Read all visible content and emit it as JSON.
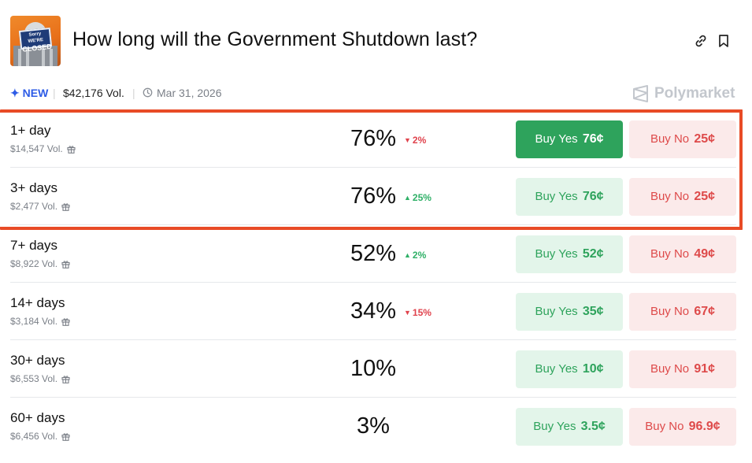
{
  "header": {
    "title": "How long will the Government Shutdown last?",
    "thumbnail": {
      "sign_top": "Sorry WE'RE",
      "sign_main": "CLOSED"
    }
  },
  "meta": {
    "new_label": "NEW",
    "volume": "$42,176 Vol.",
    "date": "Mar 31, 2026",
    "brand": "Polymarket"
  },
  "colors": {
    "yes_active": "#2ea35c",
    "yes_bg": "#e3f5ea",
    "no_bg": "#fbeaea",
    "no_text": "#de4a4a",
    "down": "#e0434d",
    "up": "#2fb067",
    "highlight": "#e84b26",
    "new": "#2e5ce6"
  },
  "outcomes": [
    {
      "label": "1+ day",
      "volume": "$14,547 Vol.",
      "percent": "76%",
      "change": "2%",
      "direction": "down",
      "yes_label": "Buy Yes",
      "yes_price": "76¢",
      "no_label": "Buy No",
      "no_price": "25¢",
      "yes_active": true
    },
    {
      "label": "3+ days",
      "volume": "$2,477 Vol.",
      "percent": "76%",
      "change": "25%",
      "direction": "up",
      "yes_label": "Buy Yes",
      "yes_price": "76¢",
      "no_label": "Buy No",
      "no_price": "25¢",
      "yes_active": false
    },
    {
      "label": "7+ days",
      "volume": "$8,922 Vol.",
      "percent": "52%",
      "change": "2%",
      "direction": "up",
      "yes_label": "Buy Yes",
      "yes_price": "52¢",
      "no_label": "Buy No",
      "no_price": "49¢",
      "yes_active": false
    },
    {
      "label": "14+ days",
      "volume": "$3,184 Vol.",
      "percent": "34%",
      "change": "15%",
      "direction": "down",
      "yes_label": "Buy Yes",
      "yes_price": "35¢",
      "no_label": "Buy No",
      "no_price": "67¢",
      "yes_active": false
    },
    {
      "label": "30+ days",
      "volume": "$6,553 Vol.",
      "percent": "10%",
      "change": "",
      "direction": "none",
      "yes_label": "Buy Yes",
      "yes_price": "10¢",
      "no_label": "Buy No",
      "no_price": "91¢",
      "yes_active": false
    },
    {
      "label": "60+ days",
      "volume": "$6,456 Vol.",
      "percent": "3%",
      "change": "",
      "direction": "none",
      "yes_label": "Buy Yes",
      "yes_price": "3.5¢",
      "no_label": "Buy No",
      "no_price": "96.9¢",
      "yes_active": false
    }
  ]
}
